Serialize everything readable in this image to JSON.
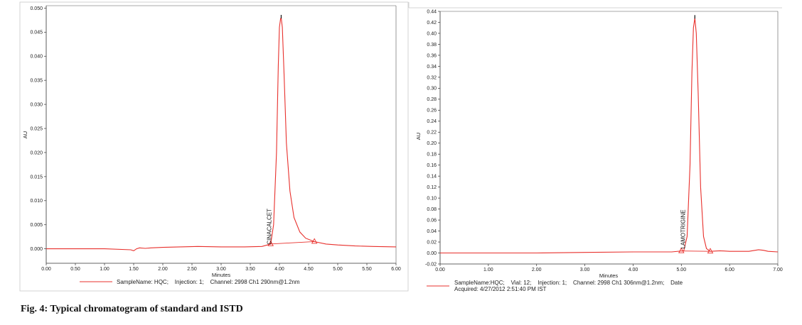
{
  "caption": "Fig. 4: Typical chromatogram of standard and ISTD",
  "chart_data": [
    {
      "type": "line",
      "xlabel": "Minutes",
      "ylabel": "AU",
      "xlim": [
        0.0,
        6.0
      ],
      "ylim": [
        -0.003,
        0.0505
      ],
      "x_ticks": [
        "0.00",
        "0.50",
        "1.00",
        "1.50",
        "2.00",
        "2.50",
        "3.00",
        "3.50",
        "4.00",
        "4.50",
        "5.00",
        "5.50",
        "6.00"
      ],
      "y_ticks": [
        "0.000",
        "0.005",
        "0.010",
        "0.015",
        "0.020",
        "0.025",
        "0.030",
        "0.035",
        "0.040",
        "0.045",
        "0.050"
      ],
      "peak": {
        "label": "CINACALCET",
        "retention_time": 4.03,
        "height": 0.048,
        "start": 3.85,
        "end": 4.6
      },
      "series": [
        {
          "color": "#e8302c",
          "x": [
            0.0,
            0.5,
            1.0,
            1.45,
            1.5,
            1.55,
            1.6,
            1.7,
            1.8,
            2.0,
            2.3,
            2.6,
            3.0,
            3.4,
            3.7,
            3.85,
            3.9,
            3.95,
            3.98,
            4.0,
            4.02,
            4.03,
            4.05,
            4.08,
            4.12,
            4.18,
            4.25,
            4.35,
            4.45,
            4.6,
            4.8,
            5.0,
            5.3,
            5.6,
            6.0
          ],
          "y": [
            0.0,
            0.0,
            0.0,
            -0.0002,
            -0.0004,
            0.0,
            0.0002,
            0.0001,
            0.0002,
            0.0003,
            0.0004,
            0.0005,
            0.0004,
            0.0004,
            0.0005,
            0.001,
            0.005,
            0.02,
            0.038,
            0.046,
            0.0478,
            0.048,
            0.046,
            0.036,
            0.022,
            0.012,
            0.0065,
            0.0035,
            0.0022,
            0.0015,
            0.001,
            0.0008,
            0.0006,
            0.0005,
            0.0004
          ]
        }
      ],
      "legend": "SampleName: HQC;    Injection: 1;    Channel: 2998 Ch1 290nm@1.2nm"
    },
    {
      "type": "line",
      "xlabel": "Minutes",
      "ylabel": "AU",
      "xlim": [
        0.0,
        7.0
      ],
      "ylim": [
        -0.02,
        0.44
      ],
      "x_ticks": [
        "0.00",
        "1.00",
        "2.00",
        "3.00",
        "4.00",
        "5.00",
        "6.00",
        "7.00"
      ],
      "y_ticks": [
        "-0.02",
        "0.00",
        "0.02",
        "0.04",
        "0.06",
        "0.08",
        "0.10",
        "0.12",
        "0.14",
        "0.16",
        "0.18",
        "0.20",
        "0.22",
        "0.24",
        "0.26",
        "0.28",
        "0.30",
        "0.32",
        "0.34",
        "0.36",
        "0.38",
        "0.40",
        "0.42",
        "0.44"
      ],
      "peak": {
        "label": "LAMOTRIGINE",
        "retention_time": 5.28,
        "height": 0.428,
        "start": 5.0,
        "end": 5.6
      },
      "series": [
        {
          "color": "#e8302c",
          "x": [
            0.0,
            1.0,
            2.0,
            3.0,
            4.0,
            4.8,
            5.05,
            5.12,
            5.18,
            5.22,
            5.25,
            5.28,
            5.31,
            5.35,
            5.4,
            5.46,
            5.52,
            5.6,
            5.8,
            6.0,
            6.4,
            6.6,
            6.7,
            6.8,
            7.0
          ],
          "y": [
            0.0,
            0.0,
            0.0,
            0.001,
            0.002,
            0.002,
            0.004,
            0.03,
            0.16,
            0.33,
            0.41,
            0.428,
            0.4,
            0.29,
            0.12,
            0.03,
            0.008,
            0.003,
            0.004,
            0.003,
            0.003,
            0.006,
            0.005,
            0.003,
            0.002
          ]
        }
      ],
      "legend": "SampleName:HQC;    Vial: 12;    Injection: 1;    Channel: 2998 Ch1 306nm@1.2nm;    Date",
      "legend_line2": "Acquired: 4/27/2012 2:51:40 PM IST"
    }
  ]
}
